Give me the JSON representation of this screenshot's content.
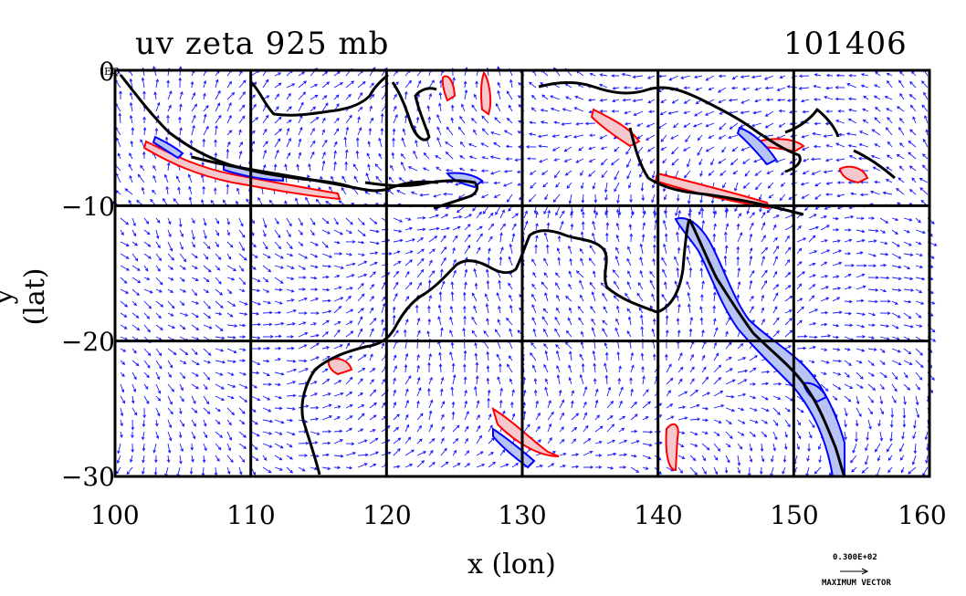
{
  "title_left": "uv zeta 925 mb",
  "title_right": "101406",
  "x_axis": {
    "label": "x (lon)",
    "ticks": [
      "100",
      "110",
      "120",
      "130",
      "140",
      "150",
      "160"
    ],
    "range": [
      100,
      160
    ]
  },
  "y_axis": {
    "label": "y (lat)",
    "ticks": [
      "0",
      "−10",
      "−20",
      "−30"
    ],
    "range": [
      -30,
      0
    ]
  },
  "eq_label": "EQ",
  "vector_legend": {
    "value": "0.300E+02",
    "name": "MAXIMUM VECTOR"
  },
  "colors": {
    "vector": "#1a1aff",
    "positive_vorticity": "#ff0000",
    "positive_fill": "#f4c8cc",
    "negative_vorticity": "#0000ff",
    "negative_fill": "#b8c4f4",
    "coastline": "#000000",
    "grid": "#000000"
  },
  "grid_lines": {
    "lon": [
      110,
      120,
      130,
      140,
      150
    ],
    "lat": [
      -10,
      -20
    ]
  }
}
